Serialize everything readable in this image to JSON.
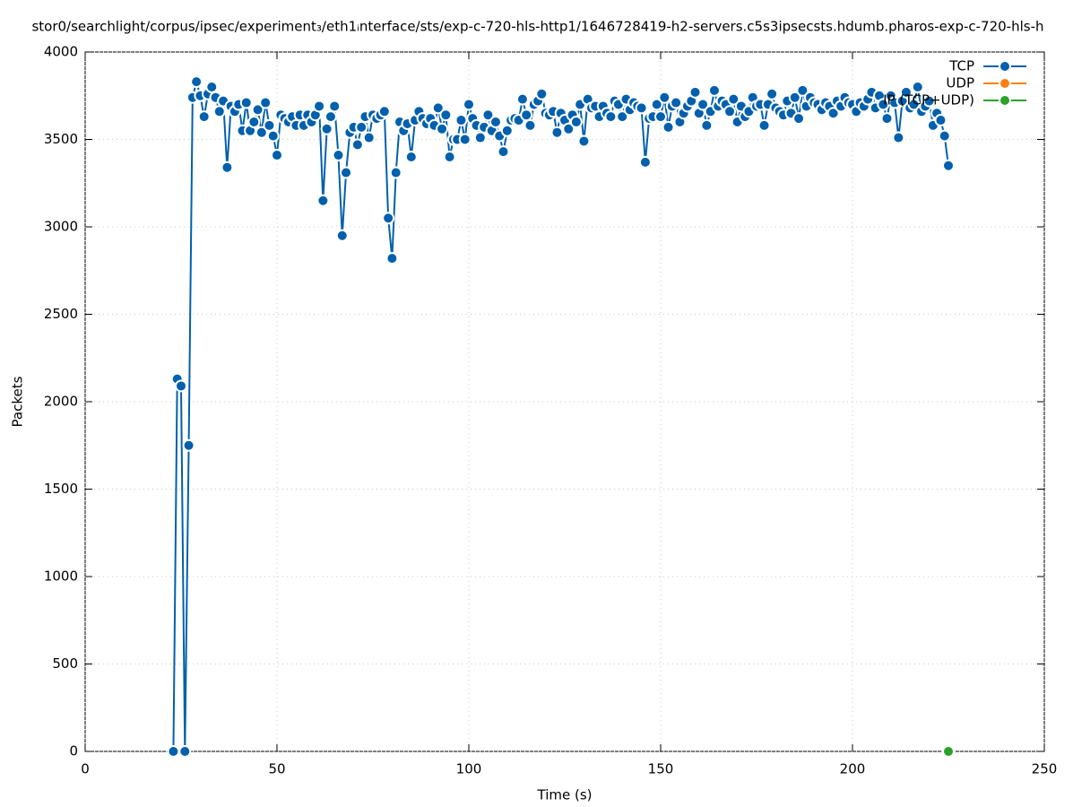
{
  "chart_data": {
    "type": "line",
    "title": "stor0/searchlight/corpus/ipsec/experiment₃/eth1ᵢnterface/sts/exp-c-720-hls-http1/1646728419-h2-servers.c5s3ipsecsts.hdumb.pharos-exp-c-720-hls-h",
    "xlabel": "Time (s)",
    "ylabel": "Packets",
    "xlim": [
      0,
      250
    ],
    "xticks": [
      0,
      50,
      100,
      150,
      200,
      250
    ],
    "ylim": [
      0,
      4000
    ],
    "yticks": [
      0,
      500,
      1000,
      1500,
      2000,
      2500,
      3000,
      3500,
      4000
    ],
    "grid": true,
    "legend": "top-right",
    "series": [
      {
        "name": "TCP",
        "color": "#0060ad",
        "x": [
          23,
          24,
          25,
          26,
          27,
          28,
          29,
          30,
          31,
          32,
          33,
          34,
          35,
          36,
          37,
          38,
          39,
          40,
          41,
          42,
          43,
          44,
          45,
          46,
          47,
          48,
          49,
          50,
          51,
          52,
          53,
          54,
          55,
          56,
          57,
          58,
          59,
          60,
          61,
          62,
          63,
          64,
          65,
          66,
          67,
          68,
          69,
          70,
          71,
          72,
          73,
          74,
          75,
          76,
          77,
          78,
          79,
          80,
          81,
          82,
          83,
          84,
          85,
          86,
          87,
          88,
          89,
          90,
          91,
          92,
          93,
          94,
          95,
          96,
          97,
          98,
          99,
          100,
          101,
          102,
          103,
          104,
          105,
          106,
          107,
          108,
          109,
          110,
          111,
          112,
          113,
          114,
          115,
          116,
          117,
          118,
          119,
          120,
          121,
          122,
          123,
          124,
          125,
          126,
          127,
          128,
          129,
          130,
          131,
          132,
          133,
          134,
          135,
          136,
          137,
          138,
          139,
          140,
          141,
          142,
          143,
          144,
          145,
          146,
          147,
          148,
          149,
          150,
          151,
          152,
          153,
          154,
          155,
          156,
          157,
          158,
          159,
          160,
          161,
          162,
          163,
          164,
          165,
          166,
          167,
          168,
          169,
          170,
          171,
          172,
          173,
          174,
          175,
          176,
          177,
          178,
          179,
          180,
          181,
          182,
          183,
          184,
          185,
          186,
          187,
          188,
          189,
          190,
          191,
          192,
          193,
          194,
          195,
          196,
          197,
          198,
          199,
          200,
          201,
          202,
          203,
          204,
          205,
          206,
          207,
          208,
          209,
          210,
          211,
          212,
          213,
          214,
          215,
          216,
          217,
          218,
          219,
          220,
          221,
          222,
          223,
          224,
          225
        ],
        "values": [
          0,
          2130,
          2090,
          0,
          1750,
          3740,
          3830,
          3750,
          3630,
          3760,
          3800,
          3740,
          3660,
          3720,
          3340,
          3690,
          3660,
          3700,
          3550,
          3710,
          3550,
          3600,
          3670,
          3540,
          3710,
          3580,
          3520,
          3410,
          3640,
          3620,
          3600,
          3630,
          3580,
          3640,
          3580,
          3640,
          3600,
          3640,
          3690,
          3150,
          3560,
          3630,
          3690,
          3410,
          2950,
          3310,
          3540,
          3570,
          3470,
          3570,
          3630,
          3510,
          3640,
          3620,
          3640,
          3660,
          3050,
          2820,
          3310,
          3600,
          3550,
          3590,
          3400,
          3610,
          3660,
          3620,
          3590,
          3620,
          3580,
          3680,
          3560,
          3640,
          3400,
          3500,
          3500,
          3610,
          3500,
          3700,
          3620,
          3580,
          3510,
          3570,
          3640,
          3550,
          3600,
          3520,
          3430,
          3550,
          3610,
          3620,
          3610,
          3730,
          3640,
          3580,
          3700,
          3720,
          3760,
          3650,
          3640,
          3660,
          3540,
          3650,
          3610,
          3560,
          3640,
          3600,
          3700,
          3490,
          3730,
          3680,
          3690,
          3630,
          3690,
          3650,
          3630,
          3720,
          3700,
          3630,
          3730,
          3670,
          3710,
          3690,
          3680,
          3370,
          3620,
          3630,
          3700,
          3630,
          3740,
          3570,
          3690,
          3710,
          3600,
          3650,
          3690,
          3720,
          3770,
          3650,
          3700,
          3580,
          3660,
          3780,
          3690,
          3720,
          3700,
          3660,
          3730,
          3600,
          3690,
          3630,
          3660,
          3740,
          3690,
          3700,
          3580,
          3700,
          3760,
          3680,
          3660,
          3640,
          3720,
          3650,
          3740,
          3620,
          3780,
          3690,
          3740,
          3710,
          3700,
          3670,
          3710,
          3690,
          3650,
          3720,
          3690,
          3740,
          3710,
          3700,
          3660,
          3710,
          3690,
          3730,
          3770,
          3680,
          3750,
          3700,
          3620,
          3750,
          3710,
          3510,
          3720,
          3770,
          3680,
          3700,
          3800,
          3660,
          3690,
          3720,
          3580,
          3650,
          3610,
          3520,
          3350
        ]
      },
      {
        "name": "UDP",
        "color": "#ff7f0e",
        "x": [],
        "values": []
      },
      {
        "name": "IP (TCP+UDP)",
        "color": "#2ca02c",
        "x": [
          225
        ],
        "values": [
          0
        ]
      }
    ]
  }
}
